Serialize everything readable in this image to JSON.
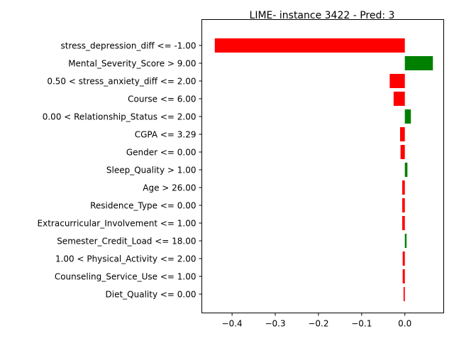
{
  "chart_data": {
    "type": "bar",
    "orientation": "horizontal",
    "title": "LIME- instance 3422 - Pred: 3",
    "xlabel": "",
    "ylabel": "",
    "categories": [
      "stress_depression_diff <= -1.00",
      "Mental_Severity_Score > 9.00",
      "0.50 < stress_anxiety_diff <= 2.00",
      "Course <= 6.00",
      "0.00 < Relationship_Status <= 2.00",
      "CGPA <= 3.29",
      "Gender <= 0.00",
      "Sleep_Quality > 1.00",
      "Age > 26.00",
      "Residence_Type <= 0.00",
      "Extracurricular_Involvement <= 1.00",
      "Semester_Credit_Load <= 18.00",
      "1.00 < Physical_Activity <= 2.00",
      "Counseling_Service_Use <= 1.00",
      "Diet_Quality <= 0.00"
    ],
    "values": [
      -0.44,
      0.065,
      -0.035,
      -0.026,
      0.014,
      -0.011,
      -0.01,
      0.006,
      -0.006,
      -0.006,
      -0.006,
      0.004,
      -0.005,
      -0.005,
      -0.003
    ],
    "xlim": [
      -0.47,
      0.09
    ],
    "xticks": [
      -0.4,
      -0.3,
      -0.2,
      -0.1,
      0.0
    ],
    "xtick_labels": [
      "−0.4",
      "−0.3",
      "−0.2",
      "−0.1",
      "0.0"
    ],
    "colors": {
      "positive": "#008000",
      "negative": "#ff0000"
    },
    "grid": false,
    "legend": "none"
  }
}
